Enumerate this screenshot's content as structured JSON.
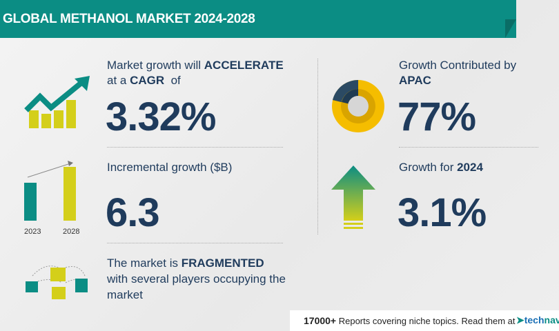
{
  "header": {
    "title": "GLOBAL METHANOL MARKET 2024-2028"
  },
  "cagr": {
    "line1_prefix": "Market growth will ",
    "line1_bold": "ACCELERATE",
    "line2_prefix": "at a ",
    "line2_bold": "CAGR",
    "line2_suffix": "  of",
    "value": "3.32%"
  },
  "incremental": {
    "label": "Incremental growth ($B)",
    "value": "6.3",
    "years": [
      "2023",
      "2028"
    ]
  },
  "fragmented": {
    "line1_prefix": "The market is ",
    "line1_bold": "FRAGMENTED",
    "line2": "with several players occupying the",
    "line3": "market"
  },
  "region": {
    "label": "Growth Contributed by",
    "region": "APAC",
    "value": "77%"
  },
  "growth_year": {
    "label": "Growth for ",
    "year": "2024",
    "value": "3.1%"
  },
  "footer": {
    "count": "17000+",
    "text": " Reports covering niche topics. Read them at",
    "logo_a": "tech",
    "logo_b": "nav"
  },
  "colors": {
    "teal": "#0b8d84",
    "navy": "#1f3b5c",
    "yellow": "#d4cf1a",
    "gold": "#f5bd00"
  }
}
